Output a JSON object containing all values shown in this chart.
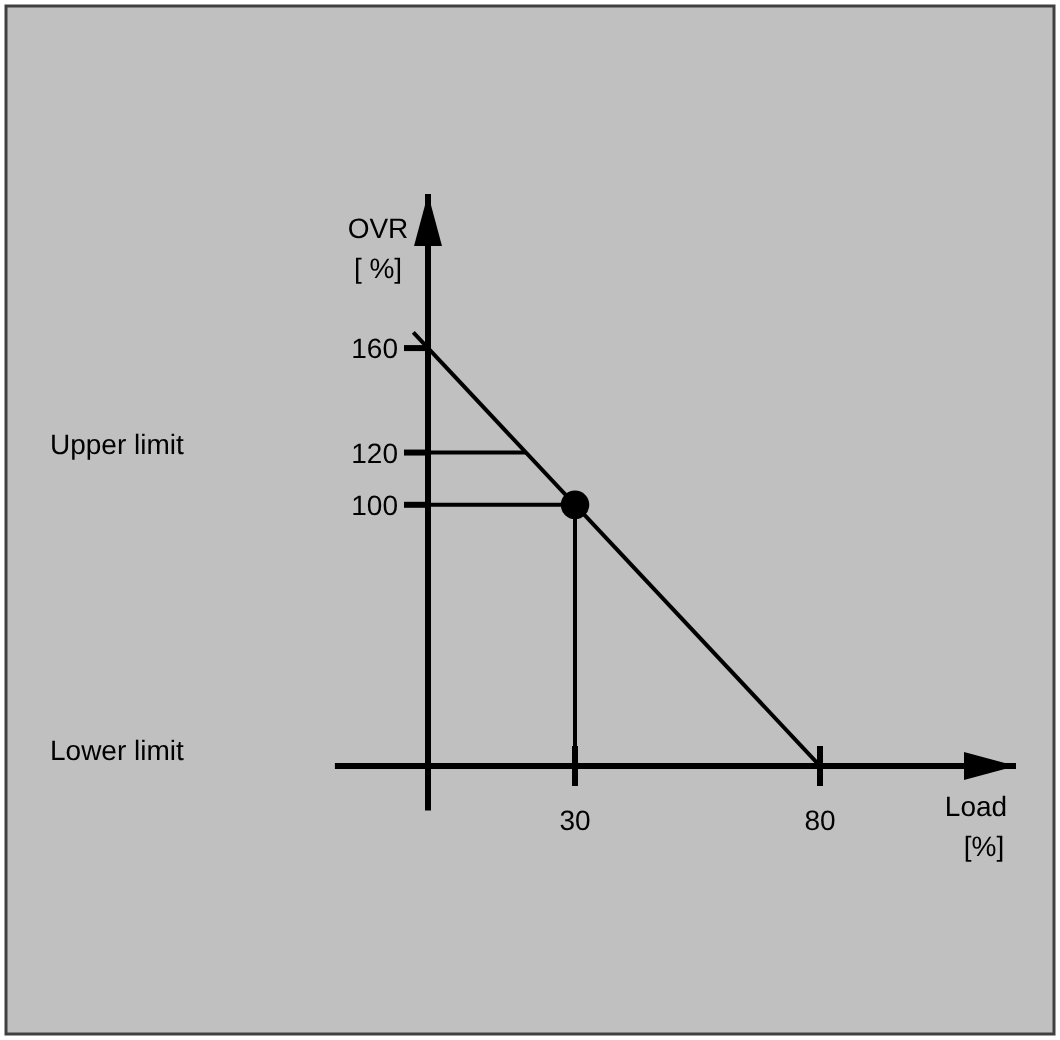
{
  "chart_data": {
    "type": "line",
    "ylabel": "OVR\n[ %]",
    "xlabel": "Load\n[%]",
    "xlim": [
      -19,
      120
    ],
    "ylim": [
      -17,
      219
    ],
    "xticks": [
      30,
      80
    ],
    "yticks": [
      100,
      120,
      160
    ],
    "series": [
      {
        "color": "#000000",
        "x": [
          -3,
          80
        ],
        "values": [
          166,
          0
        ]
      },
      {
        "color": "#000000",
        "x": [
          0,
          20
        ],
        "values": [
          120,
          120
        ]
      },
      {
        "color": "#000000",
        "x": [
          0,
          30,
          30
        ],
        "values": [
          100,
          100,
          0
        ]
      },
      {
        "type": "scatter",
        "color": "#000000",
        "x": [
          30
        ],
        "values": [
          100
        ],
        "marker": "circle"
      }
    ],
    "grid": false,
    "annotations": [
      "Upper limit",
      "Lower limit"
    ]
  }
}
